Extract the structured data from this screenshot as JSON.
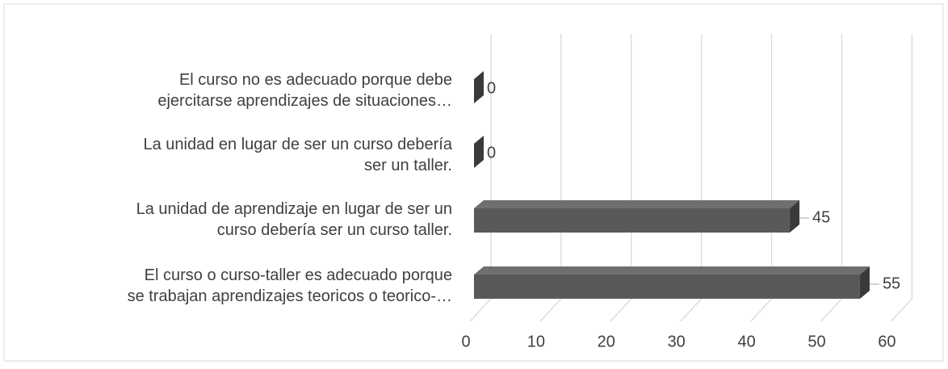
{
  "chart_data": {
    "type": "bar3d_horizontal",
    "categories": [
      "El curso no es adecuado porque debe\nejercitarse aprendizajes de situaciones…",
      "La unidad en lugar de ser un curso debería\nser un taller.",
      "La unidad de aprendizaje en lugar de ser un\ncurso debería ser un curso taller.",
      "El curso  o curso-taller es adecuado porque\nse trabajan aprendizajes teoricos o teorico-…"
    ],
    "values": [
      0,
      0,
      45,
      55
    ],
    "color": "#595959",
    "xlim": [
      0,
      60
    ],
    "xticks": [
      0,
      10,
      20,
      30,
      40,
      50,
      60
    ],
    "grid": true
  }
}
